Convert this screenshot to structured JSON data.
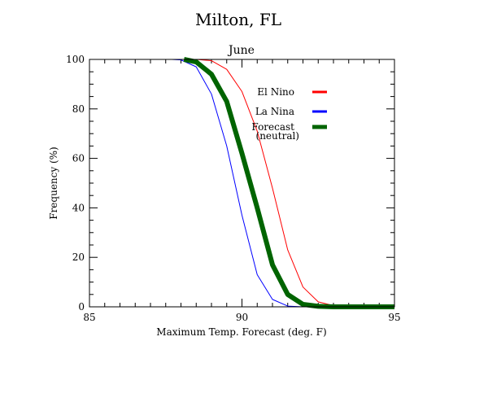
{
  "chart_data": {
    "type": "line",
    "title": "Milton, FL",
    "subtitle": "June",
    "xlabel": "Maximum Temp. Forecast (deg. F)",
    "ylabel": "Frequency (%)",
    "xlim": [
      85,
      95
    ],
    "ylim": [
      0,
      100
    ],
    "xticks": [
      85,
      90,
      95
    ],
    "yticks": [
      0,
      20,
      40,
      60,
      80,
      100
    ],
    "grid": false,
    "legend_position": "top-right",
    "series": [
      {
        "name": "El Nino",
        "color": "#ff0000",
        "width": 1,
        "x": [
          88.5,
          89.0,
          89.5,
          90.0,
          90.5,
          91.0,
          91.5,
          92.0,
          92.5,
          93.0,
          93.5,
          95.0
        ],
        "y": [
          100,
          99.5,
          96,
          87,
          71,
          48,
          23,
          8,
          2,
          0.5,
          0,
          0
        ]
      },
      {
        "name": "La Nina",
        "color": "#0000ff",
        "width": 1,
        "x": [
          87.7,
          88.0,
          88.5,
          89.0,
          89.5,
          90.0,
          90.5,
          91.0,
          91.5,
          92.0,
          95.0
        ],
        "y": [
          100,
          99.8,
          97,
          86,
          65,
          37,
          13,
          3,
          0.3,
          0,
          0
        ]
      },
      {
        "name": "Forecast",
        "name_line2": "(neutral)",
        "color": "#006400",
        "width": 6,
        "x": [
          88.1,
          88.5,
          89.0,
          89.5,
          90.0,
          90.5,
          91.0,
          91.5,
          92.0,
          92.5,
          93.0,
          93.5,
          95.0
        ],
        "y": [
          100,
          99,
          94,
          83,
          62,
          40,
          17,
          5,
          1,
          0.2,
          0,
          0,
          0
        ]
      }
    ]
  }
}
